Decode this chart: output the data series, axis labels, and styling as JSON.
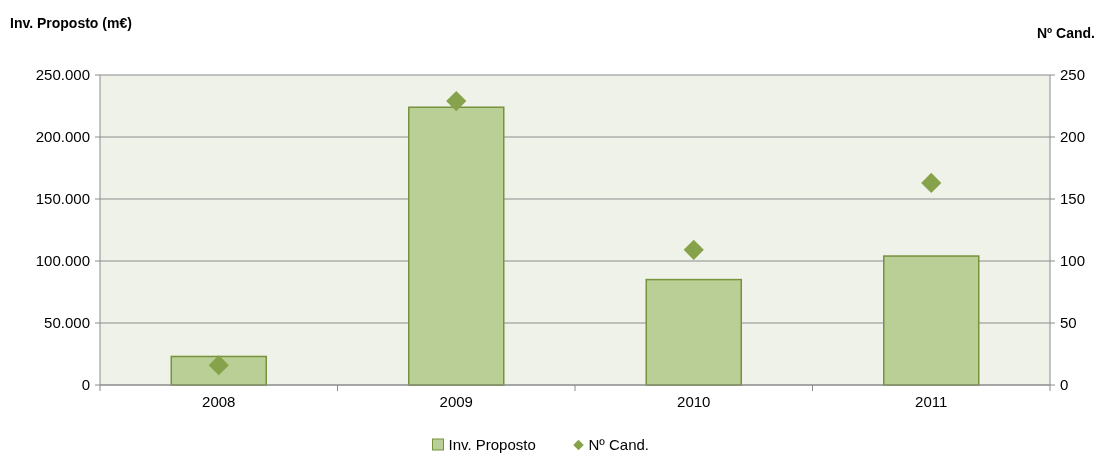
{
  "chart_data": {
    "type": "bar",
    "ylabel": "Inv. Proposto (m€)",
    "y2label": "Nº Cand.",
    "categories": [
      "2008",
      "2009",
      "2010",
      "2011"
    ],
    "series": [
      {
        "name": "Inv. Proposto",
        "color": "#b9cf96",
        "values": [
          23000,
          224000,
          85000,
          104000
        ]
      },
      {
        "name": "Nº Cand.",
        "type": "scatter",
        "axis": "y2",
        "color": "#86a34b",
        "marker": "diamond",
        "values": [
          16,
          229,
          109,
          163
        ]
      }
    ],
    "ylim": [
      0,
      250000
    ],
    "yticks": [
      0,
      {
        "value": 50000,
        "label": "50.000"
      },
      {
        "value": 100000,
        "label": "100.000"
      },
      {
        "value": 150000,
        "label": "150.000"
      },
      {
        "value": 200000,
        "label": "200.000"
      },
      {
        "value": 250000,
        "label": "250.000"
      }
    ],
    "y2lim": [
      0,
      250
    ],
    "y2ticks": [
      0,
      50,
      100,
      150,
      200,
      250
    ],
    "grid": "y",
    "legend": "bottom"
  }
}
